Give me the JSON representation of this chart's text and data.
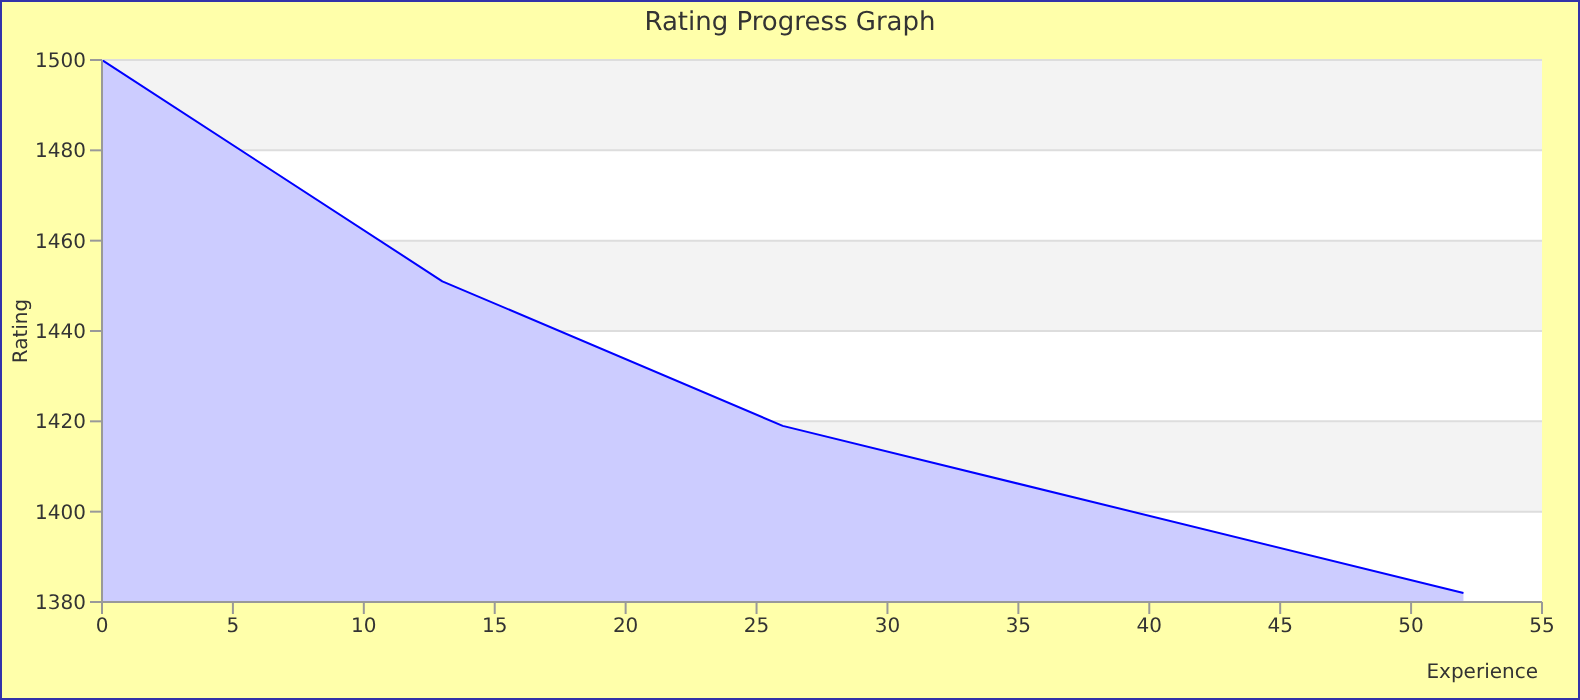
{
  "chart_data": {
    "type": "area",
    "title": "Rating Progress Graph",
    "xlabel": "Experience",
    "ylabel": "Rating",
    "x": [
      0,
      13,
      26,
      52
    ],
    "series": [
      {
        "color": "#0000ff",
        "values": [
          1500,
          1451,
          1419,
          1382
        ]
      }
    ],
    "xlim": [
      0,
      55
    ],
    "xticks": [
      0,
      5,
      10,
      15,
      20,
      25,
      30,
      35,
      40,
      45,
      50,
      55
    ],
    "ylim": [
      1380,
      1500
    ],
    "yticks": [
      1380,
      1400,
      1420,
      1440,
      1460,
      1480,
      1500
    ],
    "grid": "y",
    "legend": false,
    "marker": "none",
    "line_style": "solid"
  }
}
